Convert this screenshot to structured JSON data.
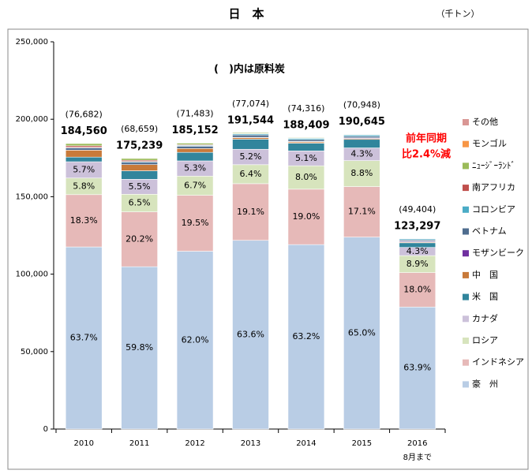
{
  "chart_data": {
    "type": "stacked_bar",
    "title": "日　本",
    "unit_label": "（千トン）",
    "note": "(　)内は原料炭",
    "annotation": [
      "前年同期",
      "比2.4%減"
    ],
    "categories": [
      "2010",
      "2011",
      "2012",
      "2013",
      "2014",
      "2015",
      "2016"
    ],
    "category_note": "8月まで",
    "ylim": [
      0,
      250000
    ],
    "yticks": [
      0,
      {
        "value": 50000,
        "label": "50,000"
      },
      {
        "value": 100000,
        "label": "100,000"
      },
      {
        "value": 150000,
        "label": "150,000"
      },
      {
        "value": 200000,
        "label": "200,000"
      },
      {
        "value": 250000,
        "label": "250,000"
      }
    ],
    "totals": {
      "values": [
        184560,
        175239,
        185152,
        191544,
        188409,
        190645,
        123297
      ],
      "labels": [
        "184,560",
        "175,239",
        "185,152",
        "191,544",
        "188,409",
        "190,645",
        "123,297"
      ]
    },
    "coking_labels": [
      "(76,682)",
      "(68,659)",
      "(71,483)",
      "(77,074)",
      "(74,316)",
      "(70,948)",
      "(49,404)"
    ],
    "series": [
      {
        "name": "豪　州",
        "color": "#b9cde5",
        "values": [
          117565,
          104793,
          114794,
          121822,
          119075,
          123919,
          78787
        ],
        "share_labels": [
          "63.7%",
          "59.8%",
          "62.0%",
          "63.6%",
          "63.2%",
          "65.0%",
          "63.9%"
        ]
      },
      {
        "name": "インドネシア",
        "color": "#e6b9b8",
        "values": [
          33774,
          35398,
          36105,
          36585,
          35798,
          32600,
          22193
        ],
        "share_labels": [
          "18.3%",
          "20.2%",
          "19.5%",
          "19.1%",
          "19.0%",
          "17.1%",
          "18.0%"
        ]
      },
      {
        "name": "ロシア",
        "color": "#d7e4bd",
        "values": [
          10704,
          11391,
          12405,
          12259,
          15073,
          16777,
          10973
        ],
        "share_labels": [
          "5.8%",
          "6.5%",
          "6.7%",
          "6.4%",
          "8.0%",
          "8.8%",
          "8.9%"
        ]
      },
      {
        "name": "カナダ",
        "color": "#ccc1da",
        "values": [
          10520,
          9638,
          9813,
          9960,
          9609,
          8198,
          5302
        ],
        "share_labels": [
          "5.7%",
          "5.5%",
          "5.3%",
          "5.2%",
          "5.1%",
          "4.3%",
          "4.3%"
        ]
      },
      {
        "name": "米　国",
        "color": "#31859c",
        "values": [
          3000,
          5500,
          5500,
          6500,
          5000,
          5500,
          3000
        ]
      },
      {
        "name": "中　国",
        "color": "#c87a3a",
        "values": [
          4500,
          4000,
          2500,
          1000,
          800,
          600,
          500
        ]
      },
      {
        "name": "モザンビーク",
        "color": "#7030a0",
        "values": [
          0,
          0,
          0,
          200,
          300,
          400,
          500
        ]
      },
      {
        "name": "ベトナム",
        "color": "#4f6d8f",
        "values": [
          1500,
          1500,
          1500,
          1500,
          1200,
          1000,
          800
        ]
      },
      {
        "name": "コロンビア",
        "color": "#4bacc6",
        "values": [
          300,
          500,
          500,
          700,
          800,
          900,
          700
        ]
      },
      {
        "name": "南アフリカ",
        "color": "#c0504d",
        "values": [
          1000,
          800,
          500,
          200,
          200,
          200,
          100
        ]
      },
      {
        "name": "ﾆｭｰｼﾞｰﾗﾝﾄﾞ",
        "color": "#9bbb59",
        "values": [
          1500,
          1200,
          1000,
          600,
          400,
          300,
          300
        ]
      },
      {
        "name": "モンゴル",
        "color": "#f79646",
        "values": [
          0,
          200,
          300,
          100,
          50,
          100,
          50
        ]
      },
      {
        "name": "その他",
        "color": "#d99694",
        "values": [
          197,
          319,
          235,
          118,
          104,
          151,
          92
        ]
      }
    ]
  }
}
